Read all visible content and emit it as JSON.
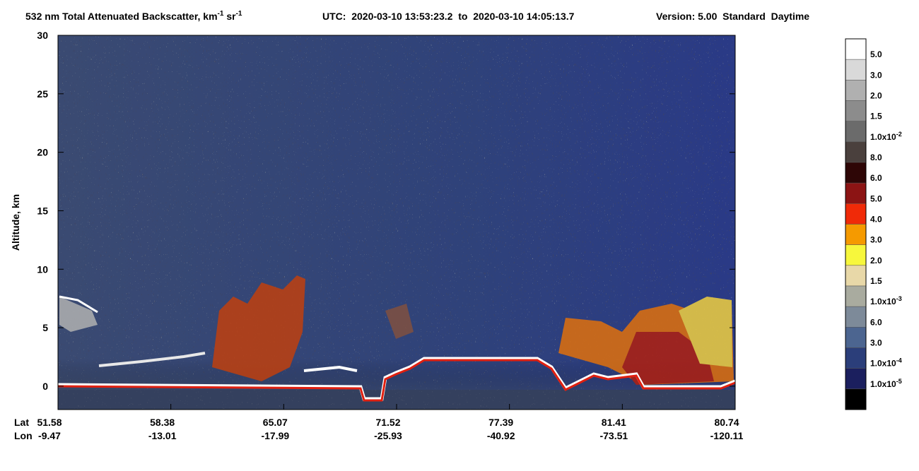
{
  "chart_data": {
    "type": "curtain",
    "title_parts": [
      "532 nm Total Attenuated Backscatter, km",
      "-1",
      " sr",
      "-1"
    ],
    "utc": "UTC:  2020-03-10 13:53:23.2  to  2020-03-10 14:05:13.7",
    "version": "Version: 5.00  Standard  Daytime",
    "y_label": "Altitude, km",
    "ylim": [
      -2,
      30
    ],
    "yticks": [
      0,
      5,
      10,
      15,
      20,
      25,
      30
    ],
    "x_rows": [
      "Lat",
      "Lon"
    ],
    "lat": [
      51.58,
      58.38,
      65.07,
      71.52,
      77.39,
      81.41,
      80.74
    ],
    "lon": [
      -9.47,
      -13.01,
      -17.99,
      -25.93,
      -40.92,
      -73.51,
      -120.11
    ],
    "colorbar": [
      {
        "color": "#ffffff",
        "label": "5.0"
      },
      {
        "color": "#d9d9d9",
        "label": "3.0"
      },
      {
        "color": "#b0b0b0",
        "label": "2.0"
      },
      {
        "color": "#8c8c8c",
        "label": "1.5"
      },
      {
        "color": "#6b6b6b",
        "label": "1.0x10",
        "exp": "-2"
      },
      {
        "color": "#4a403d",
        "label": "8.0"
      },
      {
        "color": "#2e0606",
        "label": "6.0"
      },
      {
        "color": "#8c1414",
        "label": "5.0"
      },
      {
        "color": "#f02a08",
        "label": "4.0"
      },
      {
        "color": "#f59a00",
        "label": "3.0"
      },
      {
        "color": "#f7f73c",
        "label": "2.0"
      },
      {
        "color": "#e8d8a8",
        "label": "1.5"
      },
      {
        "color": "#a9ab9f",
        "label": "1.0x10",
        "exp": "-3"
      },
      {
        "color": "#7d8a99",
        "label": "6.0"
      },
      {
        "color": "#4c6590",
        "label": "3.0"
      },
      {
        "color": "#2b3e7a",
        "label": "1.0x10",
        "exp": "-4"
      },
      {
        "color": "#1b1f5e",
        "label": "1.0x10",
        "exp": "-5"
      },
      {
        "color": "#000000"
      }
    ]
  }
}
